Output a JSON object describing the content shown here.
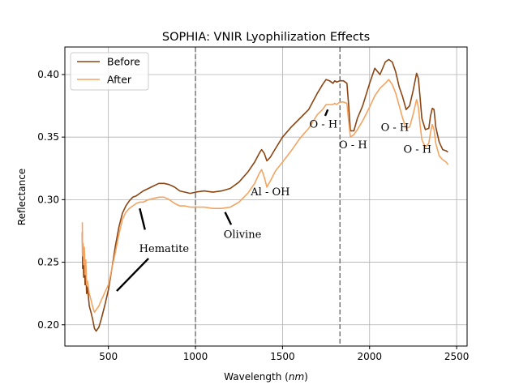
{
  "chart_data": {
    "type": "line",
    "title": "SOPHIA: VNIR Lyophilization Effects",
    "xlabel": "Wavelength (nm)",
    "xlabel_prefix": "Wavelength (",
    "xlabel_unit": "nm",
    "xlabel_suffix": ")",
    "ylabel": "Reflectance",
    "xlim": [
      250,
      2560
    ],
    "ylim": [
      0.183,
      0.422
    ],
    "xticks": [
      500,
      1000,
      1500,
      2000,
      2500
    ],
    "yticks": [
      0.2,
      0.25,
      0.3,
      0.35,
      0.4
    ],
    "xtick_labels": [
      "500",
      "1000",
      "1500",
      "2000",
      "2500"
    ],
    "ytick_labels": [
      "0.20",
      "0.25",
      "0.30",
      "0.35",
      "0.40"
    ],
    "grid": true,
    "legend_position": "top-left",
    "vlines": [
      1000,
      1830
    ],
    "series": [
      {
        "name": "Before",
        "color": "#8B4513",
        "x": [
          350,
          352,
          355,
          358,
          362,
          366,
          370,
          375,
          380,
          390,
          400,
          410,
          420,
          430,
          445,
          460,
          480,
          500,
          520,
          540,
          560,
          580,
          600,
          620,
          640,
          660,
          680,
          700,
          730,
          760,
          790,
          820,
          850,
          880,
          910,
          940,
          970,
          1000,
          1050,
          1100,
          1150,
          1200,
          1250,
          1300,
          1340,
          1370,
          1380,
          1395,
          1410,
          1430,
          1460,
          1500,
          1550,
          1600,
          1650,
          1700,
          1730,
          1750,
          1770,
          1790,
          1800,
          1810,
          1830,
          1850,
          1870,
          1880,
          1890,
          1910,
          1930,
          1960,
          2000,
          2030,
          2060,
          2090,
          2110,
          2130,
          2150,
          2170,
          2190,
          2210,
          2230,
          2250,
          2270,
          2280,
          2290,
          2300,
          2320,
          2340,
          2350,
          2360,
          2370,
          2380,
          2400,
          2420,
          2440,
          2450
        ],
        "y": [
          0.274,
          0.245,
          0.26,
          0.238,
          0.255,
          0.232,
          0.245,
          0.225,
          0.23,
          0.215,
          0.21,
          0.204,
          0.197,
          0.195,
          0.198,
          0.205,
          0.216,
          0.228,
          0.245,
          0.263,
          0.278,
          0.289,
          0.295,
          0.299,
          0.302,
          0.303,
          0.305,
          0.307,
          0.309,
          0.311,
          0.313,
          0.313,
          0.312,
          0.31,
          0.307,
          0.306,
          0.305,
          0.306,
          0.307,
          0.306,
          0.307,
          0.309,
          0.314,
          0.322,
          0.33,
          0.338,
          0.34,
          0.337,
          0.331,
          0.334,
          0.341,
          0.35,
          0.358,
          0.365,
          0.372,
          0.385,
          0.392,
          0.396,
          0.395,
          0.393,
          0.395,
          0.394,
          0.395,
          0.395,
          0.393,
          0.375,
          0.355,
          0.355,
          0.365,
          0.375,
          0.393,
          0.405,
          0.4,
          0.41,
          0.412,
          0.41,
          0.402,
          0.39,
          0.382,
          0.372,
          0.375,
          0.387,
          0.401,
          0.397,
          0.382,
          0.365,
          0.356,
          0.357,
          0.367,
          0.373,
          0.372,
          0.358,
          0.346,
          0.34,
          0.339,
          0.338
        ]
      },
      {
        "name": "After",
        "color": "#F4A460",
        "x": [
          350,
          352,
          355,
          358,
          362,
          366,
          370,
          375,
          380,
          390,
          400,
          410,
          420,
          430,
          445,
          460,
          480,
          500,
          520,
          540,
          560,
          580,
          600,
          620,
          640,
          660,
          680,
          700,
          730,
          760,
          790,
          820,
          850,
          880,
          910,
          940,
          970,
          1000,
          1050,
          1100,
          1150,
          1200,
          1250,
          1300,
          1340,
          1370,
          1380,
          1395,
          1410,
          1430,
          1460,
          1500,
          1550,
          1600,
          1650,
          1700,
          1730,
          1750,
          1770,
          1790,
          1800,
          1810,
          1830,
          1850,
          1870,
          1880,
          1890,
          1910,
          1930,
          1960,
          2000,
          2030,
          2060,
          2090,
          2110,
          2130,
          2150,
          2170,
          2190,
          2210,
          2230,
          2250,
          2270,
          2280,
          2290,
          2300,
          2320,
          2340,
          2350,
          2360,
          2370,
          2380,
          2400,
          2420,
          2440,
          2450
        ],
        "y": [
          0.282,
          0.255,
          0.265,
          0.248,
          0.262,
          0.24,
          0.252,
          0.232,
          0.235,
          0.225,
          0.22,
          0.214,
          0.21,
          0.212,
          0.215,
          0.22,
          0.226,
          0.232,
          0.245,
          0.258,
          0.272,
          0.284,
          0.29,
          0.293,
          0.295,
          0.297,
          0.298,
          0.298,
          0.3,
          0.301,
          0.302,
          0.302,
          0.3,
          0.297,
          0.295,
          0.295,
          0.294,
          0.294,
          0.294,
          0.293,
          0.293,
          0.294,
          0.298,
          0.305,
          0.313,
          0.322,
          0.324,
          0.318,
          0.31,
          0.315,
          0.323,
          0.33,
          0.339,
          0.349,
          0.357,
          0.368,
          0.372,
          0.376,
          0.376,
          0.376,
          0.377,
          0.376,
          0.378,
          0.378,
          0.377,
          0.362,
          0.35,
          0.352,
          0.356,
          0.363,
          0.374,
          0.383,
          0.389,
          0.393,
          0.396,
          0.392,
          0.385,
          0.375,
          0.365,
          0.357,
          0.358,
          0.368,
          0.38,
          0.374,
          0.36,
          0.348,
          0.342,
          0.345,
          0.354,
          0.36,
          0.356,
          0.345,
          0.335,
          0.332,
          0.33,
          0.328
        ]
      }
    ],
    "annotations": [
      {
        "text": "Hematite",
        "x": 820,
        "y": 0.258,
        "leader_a": [
          548,
          0.227
        ],
        "leader_b": [
          730,
          0.253
        ],
        "leader_c": [
          680,
          0.293
        ],
        "leader_d": [
          710,
          0.276
        ]
      },
      {
        "text": "Olivine",
        "x": 1270,
        "y": 0.2695,
        "leader_a": [
          1170,
          0.29
        ],
        "leader_b": [
          1205,
          0.28
        ]
      },
      {
        "text": "Al - OH",
        "x": 1430,
        "y": 0.3035
      },
      {
        "text": "O - H",
        "x": 1735,
        "y": 0.3575,
        "leader_a": [
          1745,
          0.367
        ],
        "leader_b": [
          1760,
          0.372
        ]
      },
      {
        "text": "O - H",
        "x": 1905,
        "y": 0.341
      },
      {
        "text": "O - H",
        "x": 2145,
        "y": 0.355
      },
      {
        "text": "O - H",
        "x": 2275,
        "y": 0.3375
      }
    ]
  }
}
